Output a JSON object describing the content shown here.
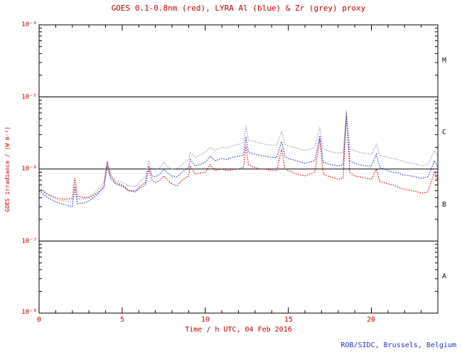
{
  "chart_data": {
    "type": "line",
    "title": "GOES 0.1-0.8nm (red), LYRA Al (blue) & Zr (grey) proxy",
    "xlabel": "Time / h UTC, 04 Feb 2016",
    "ylabel": "GOES irradiance / (W m⁻²)",
    "yscale": "log",
    "xlim": [
      0,
      24
    ],
    "ylim": [
      1e-08,
      0.0001
    ],
    "x_tick_values": [
      0,
      5,
      10,
      15,
      20
    ],
    "x_tick_labels": [
      "0",
      "5",
      "10",
      "15",
      "20"
    ],
    "x_minor_tick_interval": 1,
    "x_major_tick_interval": 5,
    "y_tick_exponents": [
      -4,
      -5,
      -6,
      -7,
      -8
    ],
    "y_tick_labels": [
      "10⁻⁴",
      "10⁻⁵",
      "10⁻⁶",
      "10⁻⁷",
      "10⁻⁸"
    ],
    "hlines": [
      1e-05,
      1e-06,
      1e-07
    ],
    "flare_class_labels": [
      "M",
      "C",
      "B",
      "A"
    ],
    "grid": "off",
    "legend": "encoded in title colors",
    "line_style": "dotted",
    "x": [
      0,
      0.5,
      1,
      1.5,
      2,
      2.15,
      2.3,
      2.75,
      3,
      3.5,
      3.9,
      4.1,
      4.3,
      4.6,
      5,
      5.4,
      5.8,
      6.1,
      6.4,
      6.6,
      6.8,
      7,
      7.3,
      7.5,
      7.8,
      8,
      8.3,
      8.6,
      9,
      9.1,
      9.4,
      9.7,
      10,
      10.3,
      10.6,
      11,
      11.3,
      11.6,
      12,
      12.3,
      12.45,
      12.6,
      13,
      13.3,
      13.6,
      14,
      14.3,
      14.6,
      14.8,
      15,
      15.5,
      16,
      16.3,
      16.6,
      16.9,
      17.1,
      17.5,
      18,
      18.3,
      18.5,
      18.7,
      19,
      19.3,
      19.6,
      20,
      20.3,
      20.5,
      21,
      21.3,
      21.6,
      22,
      22.4,
      22.8,
      23,
      23.4,
      23.8,
      24
    ],
    "series": [
      {
        "name": "GOES 0.1-0.8nm",
        "color": "#dd0000",
        "values": [
          5.5e-07,
          4.5e-07,
          4e-07,
          3.8e-07,
          3.9e-07,
          7.5e-07,
          4.2e-07,
          4e-07,
          4e-07,
          4.6e-07,
          5.5e-07,
          1.25e-06,
          8e-07,
          6.5e-07,
          6e-07,
          5e-07,
          4.8e-07,
          5.5e-07,
          6e-07,
          1e-06,
          7e-07,
          6.5e-07,
          7e-07,
          8e-07,
          6.8e-07,
          6.2e-07,
          5.8e-07,
          7e-07,
          8e-07,
          1.1e-06,
          8.5e-07,
          8.8e-07,
          9e-07,
          1.15e-06,
          9.5e-07,
          1e-06,
          9.5e-07,
          9.8e-07,
          1e-06,
          1.05e-06,
          2.1e-06,
          1.15e-06,
          1.05e-06,
          1e-06,
          1e-06,
          9.5e-07,
          9.5e-07,
          1.9e-06,
          1e-06,
          9.5e-07,
          8.5e-07,
          8e-07,
          8.5e-07,
          9e-07,
          2.6e-06,
          8.5e-07,
          7.8e-07,
          7.2e-07,
          7.5e-07,
          6e-06,
          9e-07,
          8e-07,
          7.8e-07,
          7.5e-07,
          7.2e-07,
          1e-06,
          6.8e-07,
          6.2e-07,
          6e-07,
          5.6e-07,
          5.2e-07,
          5e-07,
          4.8e-07,
          4.6e-07,
          4.8e-07,
          9e-07,
          7e-07
        ]
      },
      {
        "name": "LYRA Al proxy",
        "color": "#2233cc",
        "values": [
          5e-07,
          4e-07,
          3.5e-07,
          3.2e-07,
          3e-07,
          5.5e-07,
          3.3e-07,
          3.4e-07,
          3.6e-07,
          4.4e-07,
          5.8e-07,
          1.1e-06,
          7.5e-07,
          6.2e-07,
          5.8e-07,
          5e-07,
          5e-07,
          5.8e-07,
          6.5e-07,
          1.1e-06,
          8e-07,
          7.8e-07,
          8.5e-07,
          1e-06,
          8.5e-07,
          8e-07,
          7.8e-07,
          9e-07,
          1.05e-06,
          1.35e-06,
          1.1e-06,
          1.15e-06,
          1.25e-06,
          1.5e-06,
          1.3e-06,
          1.4e-06,
          1.35e-06,
          1.45e-06,
          1.5e-06,
          1.55e-06,
          2.8e-06,
          1.7e-06,
          1.6e-06,
          1.55e-06,
          1.5e-06,
          1.45e-06,
          1.45e-06,
          2.4e-06,
          1.5e-06,
          1.4e-06,
          1.3e-06,
          1.2e-06,
          1.25e-06,
          1.3e-06,
          2.9e-06,
          1.25e-06,
          1.15e-06,
          1.1e-06,
          1.15e-06,
          5.5e-06,
          1.3e-06,
          1.2e-06,
          1.15e-06,
          1.1e-06,
          1.1e-06,
          1.6e-06,
          1.05e-06,
          9.5e-07,
          9e-07,
          8.8e-07,
          8.2e-07,
          8e-07,
          7.6e-07,
          7.4e-07,
          7.8e-07,
          1.3e-06,
          1.05e-06
        ]
      },
      {
        "name": "LYRA Zr proxy",
        "color": "#9a9a9a",
        "values": [
          5.5e-07,
          4.3e-07,
          3.8e-07,
          3.6e-07,
          3.5e-07,
          6e-07,
          3.8e-07,
          3.9e-07,
          4.1e-07,
          5e-07,
          6.5e-07,
          1.3e-06,
          8.5e-07,
          7e-07,
          6.5e-07,
          5.8e-07,
          5.8e-07,
          6.8e-07,
          7.8e-07,
          1.3e-06,
          1e-06,
          9.5e-07,
          1.05e-06,
          1.25e-06,
          1.05e-06,
          1e-06,
          9.8e-07,
          1.15e-06,
          1.35e-06,
          1.7e-06,
          1.45e-06,
          1.55e-06,
          1.7e-06,
          2e-06,
          1.8e-06,
          2e-06,
          1.95e-06,
          2.1e-06,
          2.2e-06,
          2.3e-06,
          4e-06,
          2.5e-06,
          2.4e-06,
          2.3e-06,
          2.2e-06,
          2.15e-06,
          2.15e-06,
          3.3e-06,
          2.2e-06,
          2.1e-06,
          1.95e-06,
          1.8e-06,
          1.9e-06,
          2e-06,
          3.8e-06,
          1.9e-06,
          1.75e-06,
          1.65e-06,
          1.7e-06,
          6.5e-06,
          1.9e-06,
          1.8e-06,
          1.7e-06,
          1.65e-06,
          1.6e-06,
          2.2e-06,
          1.55e-06,
          1.45e-06,
          1.4e-06,
          1.35e-06,
          1.25e-06,
          1.2e-06,
          1.15e-06,
          1.1e-06,
          1.15e-06,
          1.8e-06,
          1.5e-06
        ]
      }
    ]
  },
  "credit": "ROB/SIDC, Brussels, Belgium",
  "colors": {
    "annotation": "#c00000",
    "frame": "#000000",
    "credit": "#2233bb",
    "background": "#ffffff",
    "red_series": "#dd0000",
    "blue_series": "#2233cc",
    "grey_series": "#9a9a9a"
  }
}
